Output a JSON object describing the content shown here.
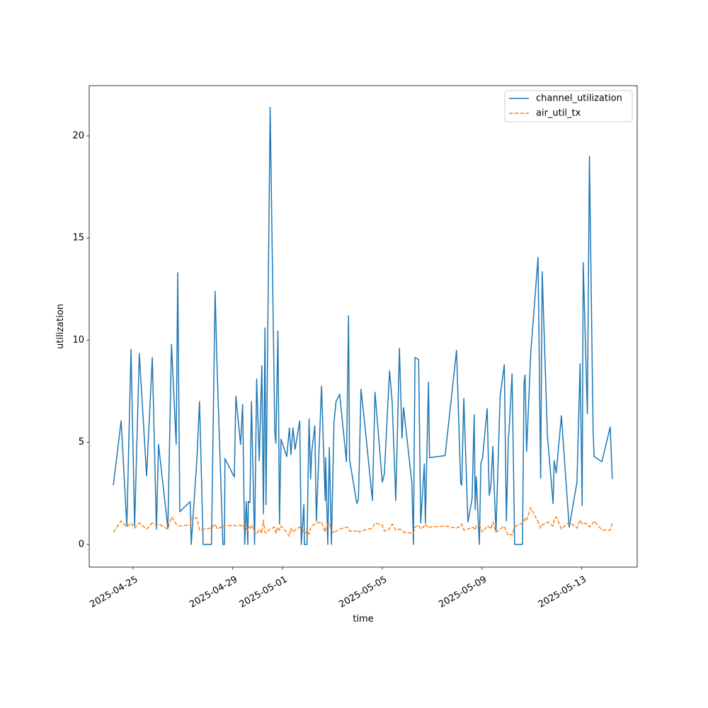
{
  "chart_data": {
    "type": "line",
    "x_label": "time",
    "y_label": "utilization",
    "x": [
      "2025-04-24T05:00",
      "2025-04-24T12:30",
      "2025-04-24T18:00",
      "2025-04-24T22:00",
      "2025-04-25T01:30",
      "2025-04-25T06:00",
      "2025-04-25T13:00",
      "2025-04-25T18:30",
      "2025-04-25T22:30",
      "2025-04-26T00:30",
      "2025-04-26T09:30",
      "2025-04-26T13:00",
      "2025-04-26T17:30",
      "2025-04-26T19:00",
      "2025-04-26T21:00",
      "2025-04-27T07:00",
      "2025-04-27T08:00",
      "2025-04-27T13:30",
      "2025-04-27T16:00",
      "2025-04-27T19:30",
      "2025-04-28T03:30",
      "2025-04-28T07:00",
      "2025-04-28T09:00",
      "2025-04-28T14:30",
      "2025-04-28T16:00",
      "2025-04-28T16:30",
      "2025-04-29T01:30",
      "2025-04-29T03:00",
      "2025-04-29T07:30",
      "2025-04-29T09:30",
      "2025-04-29T11:30",
      "2025-04-29T13:00",
      "2025-04-29T14:30",
      "2025-04-29T15:00",
      "2025-04-29T16:30",
      "2025-04-29T18:00",
      "2025-04-29T21:00",
      "2025-04-29T23:00",
      "2025-04-30T01:30",
      "2025-04-30T04:00",
      "2025-04-30T05:30",
      "2025-04-30T07:00",
      "2025-04-30T08:00",
      "2025-04-30T12:00",
      "2025-04-30T16:30",
      "2025-04-30T17:30",
      "2025-04-30T19:30",
      "2025-04-30T21:00",
      "2025-04-30T22:30",
      "2025-05-01T04:00",
      "2025-05-01T06:30",
      "2025-05-01T08:00",
      "2025-05-01T10:00",
      "2025-05-01T12:00",
      "2025-05-01T16:30",
      "2025-05-01T18:00",
      "2025-05-01T20:30",
      "2025-05-01T21:00",
      "2025-05-01T23:30",
      "2025-05-02T01:30",
      "2025-05-02T03:00",
      "2025-05-02T04:00",
      "2025-05-02T07:00",
      "2025-05-02T08:30",
      "2025-05-02T13:30",
      "2025-05-02T17:00",
      "2025-05-02T17:30",
      "2025-05-02T19:30",
      "2025-05-02T21:00",
      "2025-05-02T23:00",
      "2025-05-03T01:30",
      "2025-05-03T03:30",
      "2025-05-03T07:00",
      "2025-05-03T13:30",
      "2025-05-03T15:30",
      "2025-05-03T16:30",
      "2025-05-03T23:30",
      "2025-05-04T01:00",
      "2025-05-04T02:00",
      "2025-05-04T03:30",
      "2025-05-04T06:30",
      "2025-05-04T14:30",
      "2025-05-04T17:00",
      "2025-05-05T00:00",
      "2025-05-05T02:00",
      "2025-05-05T07:00",
      "2025-05-05T09:30",
      "2025-05-05T13:00",
      "2025-05-05T16:30",
      "2025-05-05T19:00",
      "2025-05-05T20:30",
      "2025-05-06T04:30",
      "2025-05-06T06:00",
      "2025-05-06T07:30",
      "2025-05-06T11:00",
      "2025-05-06T13:00",
      "2025-05-06T16:30",
      "2025-05-06T17:30",
      "2025-05-06T20:30",
      "2025-05-06T21:30",
      "2025-05-07T12:30",
      "2025-05-07T23:30",
      "2025-05-08T03:30",
      "2025-05-08T04:30",
      "2025-05-08T06:30",
      "2025-05-08T10:30",
      "2025-05-08T14:30",
      "2025-05-08T16:30",
      "2025-05-08T17:30",
      "2025-05-08T18:30",
      "2025-05-08T21:30",
      "2025-05-08T23:00",
      "2025-05-09T00:30",
      "2025-05-09T05:00",
      "2025-05-09T07:00",
      "2025-05-09T08:30",
      "2025-05-09T10:30",
      "2025-05-09T11:30",
      "2025-05-09T13:30",
      "2025-05-09T17:30",
      "2025-05-09T21:30",
      "2025-05-09T23:30",
      "2025-05-10T01:30",
      "2025-05-10T02:00",
      "2025-05-10T05:00",
      "2025-05-10T07:30",
      "2025-05-10T15:00",
      "2025-05-10T16:30",
      "2025-05-10T17:30",
      "2025-05-10T19:00",
      "2025-05-10T23:00",
      "2025-05-11T06:00",
      "2025-05-11T08:30",
      "2025-05-11T10:00",
      "2025-05-11T15:00",
      "2025-05-11T20:30",
      "2025-05-11T21:30",
      "2025-05-11T23:30",
      "2025-05-12T04:30",
      "2025-05-12T12:00",
      "2025-05-12T19:30",
      "2025-05-12T22:30",
      "2025-05-13T00:30",
      "2025-05-13T01:30",
      "2025-05-13T05:30",
      "2025-05-13T07:30",
      "2025-05-13T11:00",
      "2025-05-13T12:00",
      "2025-05-13T19:30",
      "2025-05-14T03:30",
      "2025-05-14T05:30"
    ],
    "series": [
      {
        "name": "channel_utilization",
        "color": "#1f77b4",
        "dash": "solid",
        "values": [
          2.9,
          6.05,
          0.9,
          9.55,
          0.9,
          9.35,
          3.35,
          9.15,
          0.75,
          4.9,
          0.8,
          9.8,
          4.9,
          13.3,
          1.6,
          2.1,
          0.0,
          4.2,
          7.0,
          0.0,
          0.0,
          12.4,
          8.5,
          0.0,
          0.0,
          4.2,
          3.3,
          7.25,
          4.9,
          6.85,
          0.0,
          2.1,
          0.0,
          2.1,
          2.05,
          7.0,
          0.0,
          8.1,
          4.1,
          8.75,
          1.5,
          10.6,
          1.95,
          21.4,
          5.5,
          4.95,
          10.45,
          1.0,
          5.15,
          4.3,
          5.7,
          4.4,
          5.7,
          4.65,
          6.05,
          0.0,
          1.95,
          0.0,
          0.0,
          6.15,
          3.2,
          4.5,
          5.8,
          1.15,
          7.75,
          2.15,
          4.25,
          0.0,
          4.75,
          0.0,
          6.0,
          7.0,
          7.35,
          4.05,
          11.2,
          4.15,
          2.0,
          2.2,
          4.2,
          7.6,
          6.2,
          2.15,
          7.45,
          3.05,
          3.45,
          8.5,
          7.0,
          2.15,
          9.6,
          5.2,
          6.7,
          3.0,
          0.0,
          9.15,
          9.05,
          1.05,
          3.95,
          1.05,
          7.95,
          4.25,
          4.35,
          9.5,
          3.0,
          2.9,
          7.15,
          1.1,
          2.25,
          6.35,
          1.7,
          3.3,
          0.0,
          4.0,
          4.2,
          6.65,
          2.4,
          2.85,
          4.8,
          3.1,
          0.65,
          7.25,
          8.8,
          1.15,
          5.3,
          5.45,
          8.35,
          0.0,
          0.0,
          7.9,
          8.3,
          4.55,
          9.4,
          14.05,
          3.25,
          13.35,
          5.35,
          2.0,
          4.1,
          3.5,
          6.3,
          0.85,
          3.05,
          8.85,
          1.9,
          13.8,
          6.4,
          19.0,
          5.6,
          4.3,
          4.05,
          5.75,
          3.2
        ]
      },
      {
        "name": "air_util_tx",
        "color": "#ff7f0e",
        "dash": "dashed",
        "values": [
          0.6,
          1.15,
          0.85,
          1.05,
          0.8,
          1.05,
          0.75,
          1.05,
          0.95,
          1.0,
          0.75,
          1.35,
          1.0,
          0.95,
          0.9,
          0.95,
          1.3,
          1.3,
          0.7,
          0.75,
          0.8,
          1.0,
          0.75,
          0.9,
          0.85,
          0.9,
          0.95,
          0.9,
          0.95,
          0.85,
          1.0,
          0.75,
          0.65,
          0.9,
          0.8,
          0.95,
          0.6,
          0.5,
          0.75,
          0.55,
          1.2,
          0.6,
          0.55,
          0.75,
          0.85,
          0.55,
          0.85,
          0.7,
          0.9,
          0.6,
          0.4,
          0.8,
          0.6,
          0.7,
          0.85,
          0.75,
          0.65,
          0.5,
          0.65,
          0.5,
          0.8,
          0.9,
          1.0,
          1.05,
          1.1,
          0.6,
          0.85,
          0.95,
          1.05,
          0.7,
          0.55,
          0.65,
          0.75,
          0.85,
          0.8,
          0.65,
          0.65,
          0.7,
          0.6,
          0.65,
          0.7,
          0.8,
          1.05,
          0.95,
          0.65,
          0.75,
          1.0,
          0.7,
          0.75,
          0.7,
          0.6,
          0.55,
          0.55,
          0.85,
          0.95,
          0.75,
          0.9,
          1.0,
          0.8,
          0.85,
          0.9,
          0.8,
          0.9,
          1.0,
          0.7,
          0.75,
          0.85,
          0.8,
          0.7,
          0.9,
          0.95,
          0.8,
          0.6,
          0.9,
          0.85,
          0.75,
          1.1,
          0.9,
          0.6,
          0.75,
          0.9,
          0.6,
          0.45,
          0.5,
          0.45,
          0.85,
          1.05,
          1.1,
          1.3,
          1.2,
          1.8,
          1.1,
          0.8,
          0.95,
          1.1,
          0.9,
          1.2,
          1.35,
          0.75,
          1.1,
          0.8,
          1.2,
          1.0,
          1.05,
          1.0,
          0.85,
          1.05,
          1.15,
          0.7,
          0.7,
          1.05
        ]
      }
    ],
    "xlim": [
      "2025-04-23T05:45",
      "2025-05-15T05:30"
    ],
    "xticks": [
      "2025-04-25",
      "2025-04-29",
      "2025-05-01",
      "2025-05-05",
      "2025-05-09",
      "2025-05-13"
    ],
    "ylim": [
      -1.11,
      22.46
    ],
    "yticks": [
      0,
      5,
      10,
      15,
      20
    ],
    "grid": false,
    "legend": "upper right"
  }
}
